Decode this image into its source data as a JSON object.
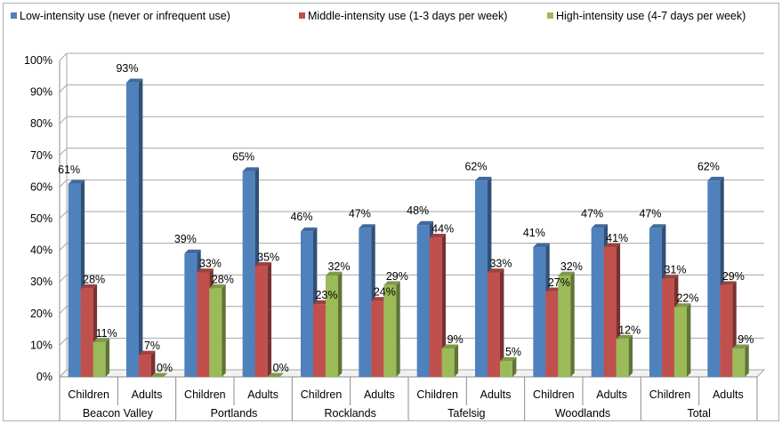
{
  "chart_data": {
    "type": "bar",
    "legend_position": "top",
    "ylim": [
      0,
      100
    ],
    "y_tick_labels": [
      "0%",
      "10%",
      "20%",
      "30%",
      "40%",
      "50%",
      "60%",
      "70%",
      "80%",
      "90%",
      "100%"
    ],
    "grid": true,
    "groups": [
      {
        "label": "Beacon Valley",
        "categories": [
          "Children",
          "Adults"
        ]
      },
      {
        "label": "Portlands",
        "categories": [
          "Children",
          "Adults"
        ]
      },
      {
        "label": "Rocklands",
        "categories": [
          "Children",
          "Adults"
        ]
      },
      {
        "label": "Tafelsig",
        "categories": [
          "Children",
          "Adults"
        ]
      },
      {
        "label": "Woodlands",
        "categories": [
          "Children",
          "Adults"
        ]
      },
      {
        "label": "Total",
        "categories": [
          "Children",
          "Adults"
        ]
      }
    ],
    "series": [
      {
        "name": "Low-intensity use (never or infrequent use)",
        "color": "#4f81bd",
        "values": [
          61,
          93,
          39,
          65,
          46,
          47,
          48,
          62,
          41,
          47,
          47,
          62
        ]
      },
      {
        "name": "Middle-intensity use (1-3 days per week)",
        "color": "#c0504d",
        "values": [
          28,
          7,
          33,
          35,
          23,
          24,
          44,
          33,
          27,
          41,
          31,
          29
        ]
      },
      {
        "name": "High-intensity use (4-7 days per week)",
        "color": "#9bbb59",
        "values": [
          11,
          0,
          28,
          0,
          32,
          29,
          9,
          5,
          32,
          12,
          22,
          9
        ]
      }
    ],
    "data_labels": [
      [
        "61%",
        "93%",
        "39%",
        "65%",
        "46%",
        "47%",
        "48%",
        "62%",
        "41%",
        "47%",
        "47%",
        "62%"
      ],
      [
        "28%",
        "7%",
        "33%",
        "35%",
        "23%",
        "24%",
        "44%",
        "33%",
        "27%",
        "41%",
        "31%",
        "29%"
      ],
      [
        "11%",
        "0%",
        "28%",
        "0%",
        "32%",
        "29%",
        "9%",
        "5%",
        "32%",
        "12%",
        "22%",
        "9%"
      ]
    ]
  }
}
